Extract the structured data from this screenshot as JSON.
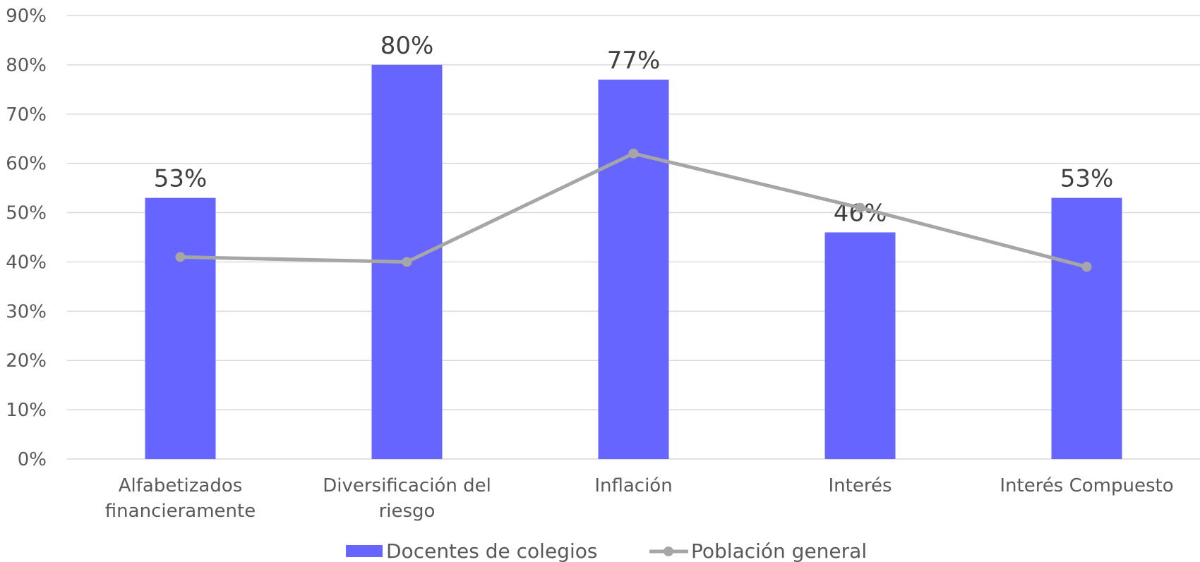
{
  "chart_data": {
    "type": "bar",
    "title": "",
    "xlabel": "",
    "ylabel": "",
    "categories": [
      [
        "Alfabetizados",
        "financieramente"
      ],
      [
        "Diversificación del",
        "riesgo"
      ],
      [
        "Inflación"
      ],
      [
        "Interés"
      ],
      [
        "Interés Compuesto"
      ]
    ],
    "ylim": [
      0,
      90
    ],
    "yticks": [
      "0%",
      "10%",
      "20%",
      "30%",
      "40%",
      "50%",
      "60%",
      "70%",
      "80%",
      "90%"
    ],
    "grid": true,
    "legend_position": "bottom",
    "series": [
      {
        "name": "Docentes de colegios",
        "type": "bar",
        "color": "#6666ff",
        "values": [
          53,
          80,
          77,
          46,
          53
        ],
        "labels": [
          "53%",
          "80%",
          "77%",
          "46%",
          "53%"
        ]
      },
      {
        "name": "Población general",
        "type": "line",
        "color": "#a6a6a6",
        "values": [
          41,
          40,
          62,
          51,
          39
        ]
      }
    ]
  }
}
